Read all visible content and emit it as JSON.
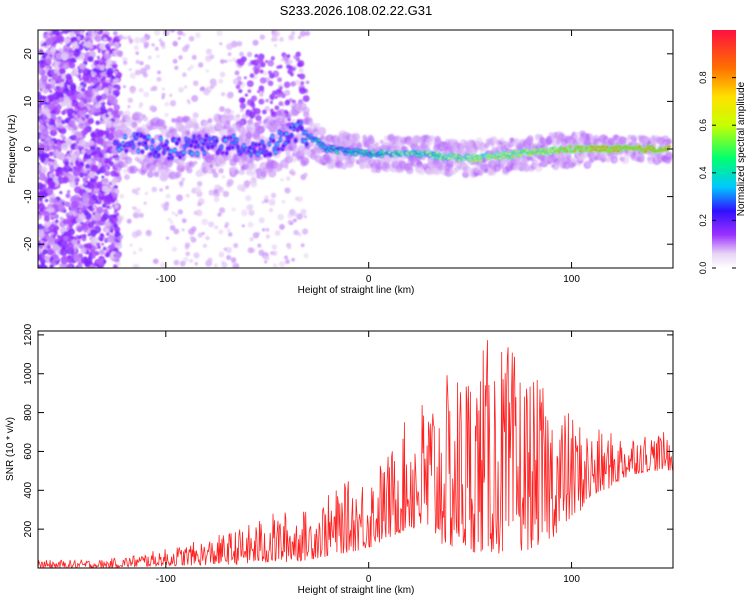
{
  "title": "S233.2026.108.02.22.G31",
  "chart_data": [
    {
      "type": "heatmap",
      "xlabel": "Height of straight line (km)",
      "ylabel": "Frequency (Hz)",
      "xlim": [
        -163,
        150
      ],
      "ylim": [
        -25,
        25
      ],
      "xticks": [
        -100,
        0,
        100
      ],
      "yticks": [
        -20,
        -10,
        0,
        10,
        20
      ],
      "colorbar": {
        "label": "Normalized spectral amplitude",
        "range": [
          0,
          1
        ],
        "ticks": [
          0.0,
          0.2,
          0.4,
          0.6,
          0.8
        ],
        "colors": [
          "#ffffff",
          "#e8d4f5",
          "#9b30ff",
          "#3010ff",
          "#00c8ff",
          "#00ff70",
          "#c8ff00",
          "#ffe000",
          "#ff7000",
          "#ff1040"
        ]
      },
      "ridge": {
        "description_points": [
          [
            -125,
            2
          ],
          [
            -100,
            0
          ],
          [
            -75,
            1
          ],
          [
            -50,
            0
          ],
          [
            -35,
            4
          ],
          [
            -20,
            0
          ],
          [
            0,
            -1
          ],
          [
            25,
            -1
          ],
          [
            50,
            -2
          ],
          [
            75,
            -1
          ],
          [
            100,
            0
          ],
          [
            125,
            0
          ],
          [
            150,
            0
          ]
        ]
      }
    },
    {
      "type": "line",
      "xlabel": "Height of straight line (km)",
      "ylabel": "SNR (10 * v/v)",
      "xlim": [
        -163,
        150
      ],
      "ylim": [
        0,
        1220
      ],
      "xticks": [
        -100,
        0,
        100
      ],
      "yticks": [
        200,
        400,
        600,
        800,
        1000,
        1200
      ],
      "series": [
        {
          "color": "#ff2020",
          "envelope_x": [
            -163,
            -130,
            -120,
            -100,
            -80,
            -60,
            -50,
            -40,
            -30,
            -20,
            -10,
            0,
            10,
            20,
            30,
            40,
            50,
            60,
            70,
            80,
            90,
            100,
            110,
            120,
            130,
            140,
            150
          ],
          "envelope_lo": [
            0,
            0,
            5,
            10,
            15,
            20,
            25,
            30,
            40,
            60,
            80,
            100,
            150,
            200,
            150,
            100,
            80,
            80,
            60,
            100,
            150,
            250,
            350,
            420,
            480,
            500,
            500
          ],
          "envelope_hi": [
            40,
            45,
            60,
            100,
            150,
            220,
            280,
            300,
            300,
            380,
            450,
            500,
            600,
            800,
            950,
            1000,
            1100,
            1200,
            1150,
            1000,
            900,
            800,
            720,
            700,
            700,
            700,
            700
          ]
        }
      ]
    }
  ]
}
